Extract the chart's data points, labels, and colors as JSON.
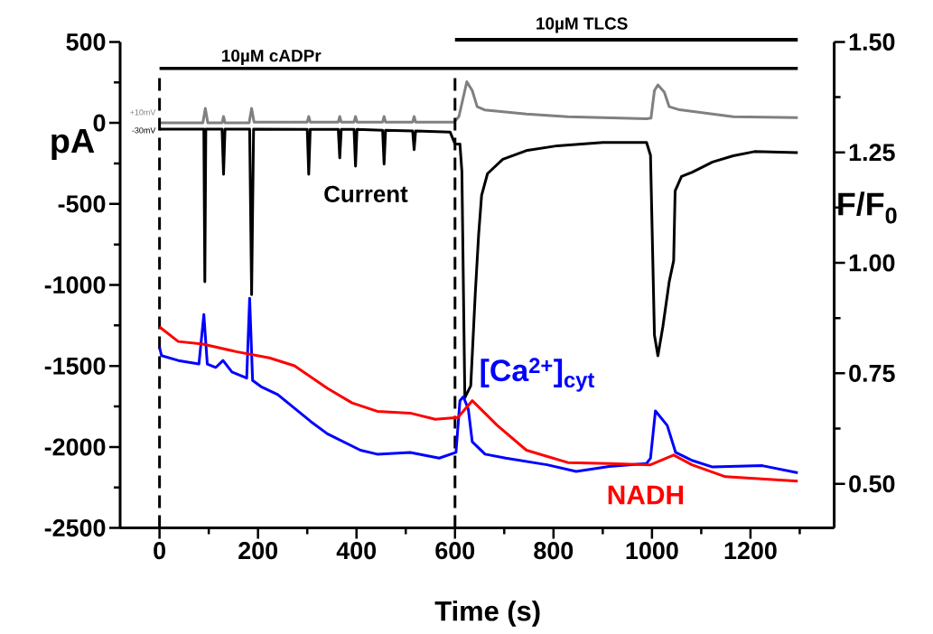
{
  "chart_data": {
    "type": "line",
    "xlabel": "Time (s)",
    "ylabel": "pA",
    "y2label": "F/F$_{0}$",
    "xlim": [
      -80,
      1370
    ],
    "xticks": [
      0,
      200,
      400,
      600,
      800,
      1000,
      1200,
      {
        "value": 100,
        "label": null
      },
      {
        "value": 300,
        "label": null
      },
      {
        "value": 500,
        "label": null
      },
      {
        "value": 700,
        "label": null
      },
      {
        "value": 900,
        "label": null
      },
      {
        "value": 1100,
        "label": null
      },
      {
        "value": 1300,
        "label": null
      }
    ],
    "ylim": [
      -2500,
      500
    ],
    "yticks": [
      -2500,
      -2000,
      -1500,
      -1000,
      -500,
      0,
      500,
      {
        "value": -2250,
        "label": null
      },
      {
        "value": -1750,
        "label": null
      },
      {
        "value": -1250,
        "label": null
      },
      {
        "value": -750,
        "label": null
      },
      {
        "value": -250,
        "label": null
      },
      {
        "value": 250,
        "label": null
      }
    ],
    "y2lim": [
      0.4,
      1.5
    ],
    "y2ticks": [
      {
        "value": 0.5,
        "label": "0.50"
      },
      {
        "value": 0.75,
        "label": "0.75"
      },
      {
        "value": 1.0,
        "label": "1.00"
      },
      {
        "value": 1.25,
        "label": "1.25"
      },
      {
        "value": 1.5,
        "label": "1.50"
      },
      {
        "value": 0.625,
        "label": null
      },
      {
        "value": 0.875,
        "label": null
      },
      {
        "value": 1.125,
        "label": null
      },
      {
        "value": 1.375,
        "label": null
      }
    ],
    "series": [
      {
        "color": "#808080",
        "x": [
          0,
          88,
          93,
          98,
          127,
          130,
          133,
          182,
          187,
          192,
          300,
          303,
          306,
          363,
          366,
          369,
          395,
          398,
          401,
          453,
          456,
          459,
          514,
          517,
          520,
          598,
          608,
          624,
          635,
          645,
          660,
          745,
          829,
          989,
          998,
          1005,
          1012,
          1025,
          1035,
          1056,
          1165,
          1296
        ],
        "values": [
          0,
          0,
          90,
          0,
          0,
          40,
          0,
          0,
          90,
          5,
          5,
          40,
          5,
          5,
          40,
          5,
          5,
          40,
          5,
          5,
          40,
          5,
          5,
          40,
          5,
          5,
          40,
          254,
          200,
          100,
          80,
          55,
          38,
          26,
          30,
          200,
          234,
          190,
          100,
          81,
          38,
          33
        ]
      },
      {
        "name": "Current",
        "color": "#000000",
        "x": [
          0,
          90,
          92,
          94,
          127,
          130,
          133,
          183,
          187,
          191,
          300,
          303,
          306,
          363,
          366,
          369,
          395,
          398,
          401,
          453,
          456,
          459,
          514,
          517,
          520,
          590,
          600,
          610,
          614,
          620,
          632,
          641,
          648,
          654,
          666,
          697,
          747,
          808,
          900,
          989,
          997,
          1005,
          1012,
          1022,
          1035,
          1044,
          1047,
          1060,
          1081,
          1123,
          1165,
          1208,
          1296
        ],
        "values": [
          -38,
          -38,
          -980,
          -38,
          -38,
          -317,
          -38,
          -38,
          -1060,
          -38,
          -40,
          -317,
          -40,
          -40,
          -216,
          -40,
          -40,
          -267,
          -40,
          -45,
          -254,
          -45,
          -50,
          -165,
          -50,
          -56,
          -130,
          -130,
          -300,
          -1696,
          -1622,
          -1063,
          -689,
          -447,
          -313,
          -225,
          -169,
          -141,
          -121,
          -121,
          -200,
          -1310,
          -1437,
          -1259,
          -980,
          -850,
          -420,
          -330,
          -305,
          -241,
          -203,
          -177,
          -183
        ]
      },
      {
        "name": "[Ca$^{2+}$]$_{cyt}$",
        "color": "#0000ff",
        "axis": "y2",
        "x": [
          0,
          4,
          38,
          80,
          90,
          97,
          114,
          129,
          147,
          177,
          183,
          189,
          206,
          240,
          307,
          341,
          408,
          442,
          509,
          568,
          602,
          610,
          617,
          627,
          635,
          661,
          703,
          787,
          846,
          913,
          989,
          997,
          1007,
          1031,
          1048,
          1081,
          1123,
          1224,
          1296
        ],
        "values": [
          0.809,
          0.79,
          0.779,
          0.771,
          0.883,
          0.771,
          0.763,
          0.779,
          0.753,
          0.739,
          0.92,
          0.734,
          0.72,
          0.702,
          0.641,
          0.613,
          0.576,
          0.567,
          0.571,
          0.558,
          0.571,
          0.688,
          0.697,
          0.669,
          0.595,
          0.567,
          0.558,
          0.543,
          0.528,
          0.539,
          0.546,
          0.558,
          0.665,
          0.632,
          0.571,
          0.553,
          0.538,
          0.541,
          0.525
        ]
      },
      {
        "name": "NADH",
        "color": "#ff0000",
        "axis": "y2",
        "x": [
          0,
          38,
          88,
          156,
          223,
          274,
          341,
          391,
          442,
          509,
          560,
          606,
          635,
          686,
          745,
          829,
          913,
          997,
          1044,
          1081,
          1149,
          1296
        ],
        "values": [
          0.855,
          0.822,
          0.816,
          0.799,
          0.785,
          0.767,
          0.716,
          0.683,
          0.664,
          0.66,
          0.646,
          0.65,
          0.688,
          0.632,
          0.576,
          0.548,
          0.546,
          0.543,
          0.565,
          0.543,
          0.516,
          0.506
        ]
      }
    ],
    "ref_lines": [
      {
        "axis": "x",
        "value": 0,
        "color": "#000000",
        "line_style": "dashed"
      },
      {
        "axis": "x",
        "value": 600,
        "color": "#000000",
        "line_style": "dashed"
      },
      {
        "axis": "y",
        "value": 337,
        "color": "#000000",
        "label": "10µM cADPr"
      }
    ],
    "annotations": [
      "+10mV",
      "-30mV",
      "10µM TLCS"
    ],
    "legend": false
  }
}
